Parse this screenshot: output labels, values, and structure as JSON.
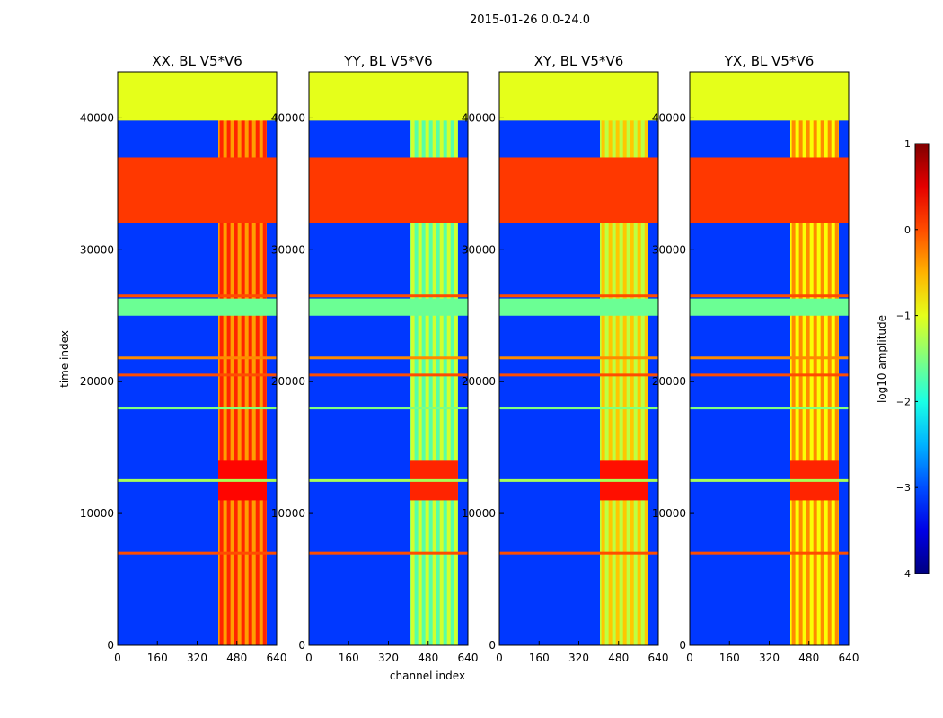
{
  "figure": {
    "suptitle": "2015-01-26 0.0-24.0"
  },
  "chart_data": {
    "type": "heatmap",
    "colormap": "jet",
    "x_label": "channel index",
    "y_label": "time index",
    "x_range": [
      0,
      640
    ],
    "y_range": [
      0,
      43500
    ],
    "x_ticks": [
      0,
      160,
      320,
      480,
      640
    ],
    "x_tick_labels": [
      "0",
      "160",
      "320",
      "480",
      "640"
    ],
    "y_ticks": [
      0,
      10000,
      20000,
      30000,
      40000
    ],
    "y_tick_labels": [
      "0",
      "10000",
      "20000",
      "30000",
      "40000"
    ],
    "panels": [
      {
        "title": "XX, BL V5*V6",
        "band_level": -0.4,
        "burst_level": 0.35,
        "bg_level": -3.1
      },
      {
        "title": "YY, BL V5*V6",
        "band_level": -1.7,
        "burst_level": 0.2,
        "bg_level": -3.1
      },
      {
        "title": "XY, BL V5*V6",
        "band_level": -1.2,
        "burst_level": 0.3,
        "bg_level": -3.1
      },
      {
        "title": "YX, BL V5*V6",
        "band_level": -0.9,
        "burst_level": 0.2,
        "bg_level": -3.1
      }
    ],
    "rfi_band": {
      "channel_start": 405,
      "channel_end": 600,
      "strong_columns": [
        418,
        447,
        476,
        505,
        534,
        563,
        592
      ]
    },
    "burst_region": {
      "time_start": 11000,
      "time_end": 14000
    },
    "flagged_regions": [
      {
        "time_start": 39800,
        "time_end": 43500,
        "level": -1.0
      },
      {
        "time_start": 32000,
        "time_end": 37000,
        "level": 0.1
      },
      {
        "time_start": 25000,
        "time_end": 26300,
        "level": -1.6
      }
    ],
    "horizontal_stripes": [
      {
        "time": 7000,
        "level": 0.0
      },
      {
        "time": 20500,
        "level": 0.0
      },
      {
        "time": 26500,
        "level": 0.0
      },
      {
        "time": 21800,
        "level": -0.3
      },
      {
        "time": 18000,
        "level": -1.5
      },
      {
        "time": 12500,
        "level": -1.3
      }
    ],
    "colorbar": {
      "label": "log10 amplitude",
      "range": [
        -4,
        1
      ],
      "ticks": [
        1,
        0,
        -1,
        -2,
        -3,
        -4
      ],
      "tick_labels": [
        "1",
        "0",
        "−1",
        "−2",
        "−3",
        "−4"
      ]
    }
  }
}
